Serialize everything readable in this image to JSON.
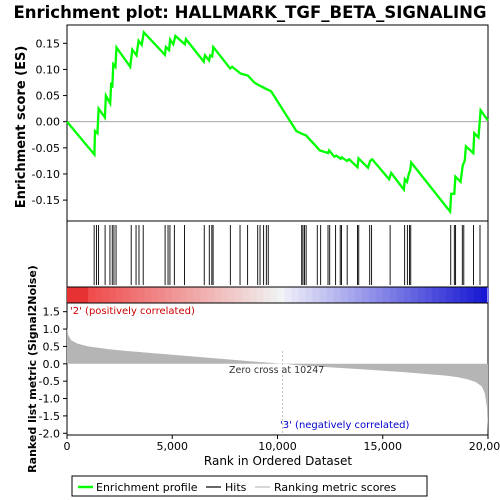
{
  "chart_data": {
    "type": "line",
    "title": "Enrichment plot: HALLMARK_TGF_BETA_SIGNALING",
    "es_panel": {
      "ylabel": "Enrichment score (ES)",
      "ylim": [
        -0.19,
        0.185
      ],
      "yticks": [
        -0.15,
        -0.1,
        -0.05,
        0.0,
        0.05,
        0.1,
        0.15
      ],
      "ytick_labels": [
        "-0.15",
        "-0.10",
        "-0.05",
        "0.00",
        "0.05",
        "0.10",
        "0.15"
      ],
      "color": "#00ff00",
      "series_points": [
        [
          0,
          0.0
        ],
        [
          1300,
          -0.063
        ],
        [
          1330,
          -0.018
        ],
        [
          1450,
          -0.022
        ],
        [
          1500,
          0.025
        ],
        [
          1800,
          0.008
        ],
        [
          1850,
          0.05
        ],
        [
          2050,
          0.035
        ],
        [
          2100,
          0.075
        ],
        [
          2150,
          0.065
        ],
        [
          2200,
          0.11
        ],
        [
          2300,
          0.105
        ],
        [
          2350,
          0.142
        ],
        [
          3000,
          0.105
        ],
        [
          3100,
          0.138
        ],
        [
          3300,
          0.127
        ],
        [
          3400,
          0.155
        ],
        [
          3550,
          0.147
        ],
        [
          3650,
          0.171
        ],
        [
          4650,
          0.128
        ],
        [
          4700,
          0.143
        ],
        [
          4850,
          0.137
        ],
        [
          4900,
          0.157
        ],
        [
          5050,
          0.148
        ],
        [
          5150,
          0.164
        ],
        [
          5600,
          0.148
        ],
        [
          5650,
          0.158
        ],
        [
          6500,
          0.115
        ],
        [
          6550,
          0.127
        ],
        [
          6750,
          0.117
        ],
        [
          6800,
          0.127
        ],
        [
          6900,
          0.125
        ],
        [
          6950,
          0.143
        ],
        [
          7750,
          0.102
        ],
        [
          7850,
          0.105
        ],
        [
          8250,
          0.092
        ],
        [
          8600,
          0.088
        ],
        [
          8900,
          0.075
        ],
        [
          9100,
          0.07
        ],
        [
          9300,
          0.066
        ],
        [
          9450,
          0.063
        ],
        [
          9700,
          0.058
        ],
        [
          10900,
          -0.018
        ],
        [
          11200,
          -0.024
        ],
        [
          11350,
          -0.026
        ],
        [
          11900,
          -0.05
        ],
        [
          12000,
          -0.055
        ],
        [
          12400,
          -0.06
        ],
        [
          12450,
          -0.055
        ],
        [
          12700,
          -0.067
        ],
        [
          12800,
          -0.065
        ],
        [
          13000,
          -0.071
        ],
        [
          13050,
          -0.068
        ],
        [
          13300,
          -0.075
        ],
        [
          13400,
          -0.072
        ],
        [
          13800,
          -0.087
        ],
        [
          13850,
          -0.07
        ],
        [
          14300,
          -0.088
        ],
        [
          14400,
          -0.075
        ],
        [
          14500,
          -0.072
        ],
        [
          15300,
          -0.11
        ],
        [
          15400,
          -0.098
        ],
        [
          16000,
          -0.13
        ],
        [
          16050,
          -0.11
        ],
        [
          16150,
          -0.115
        ],
        [
          16250,
          -0.098
        ],
        [
          16300,
          -0.094
        ],
        [
          16350,
          -0.078
        ],
        [
          18200,
          -0.172
        ],
        [
          18250,
          -0.138
        ],
        [
          18400,
          -0.138
        ],
        [
          18450,
          -0.105
        ],
        [
          18700,
          -0.115
        ],
        [
          18800,
          -0.084
        ],
        [
          18900,
          -0.074
        ],
        [
          18950,
          -0.047
        ],
        [
          19300,
          -0.06
        ],
        [
          19350,
          -0.022
        ],
        [
          19550,
          -0.03
        ],
        [
          19650,
          0.022
        ],
        [
          20000,
          0.002
        ]
      ]
    },
    "hits": [
      1290,
      1400,
      1500,
      1810,
      2040,
      2150,
      2230,
      2330,
      3050,
      3280,
      3420,
      3620,
      4660,
      4800,
      4890,
      5100,
      5580,
      6520,
      6760,
      6880,
      6940,
      7760,
      8220,
      8580,
      9060,
      9170,
      9340,
      9470,
      9560,
      11150,
      11210,
      11280,
      11360,
      11890,
      12050,
      12400,
      12480,
      12760,
      12980,
      13040,
      13310,
      13800,
      13860,
      14380,
      14470,
      15350,
      16040,
      16170,
      16270,
      16330,
      18230,
      18400,
      18460,
      18780,
      18850,
      19310,
      19620
    ],
    "metric_panel": {
      "ylabel": "Ranked list metric (Signal2Noise)",
      "xlabel": "Rank in Ordered Dataset",
      "ylim": [
        -2.05,
        1.75
      ],
      "yticks": [
        -2.0,
        -1.5,
        -1.0,
        -0.5,
        0.0,
        0.5,
        1.0,
        1.5
      ],
      "ytick_labels": [
        "-2.0",
        "-1.5",
        "-1.0",
        "-0.5",
        "0.0",
        "0.5",
        "1.0",
        "1.5"
      ],
      "xlim": [
        0,
        20000
      ],
      "xticks": [
        0,
        5000,
        10000,
        15000,
        20000
      ],
      "xtick_labels": [
        "0",
        "5,000",
        "10,000",
        "15,000",
        "20,000"
      ],
      "zero_cross_rank": 10247,
      "zero_cross_label": "Zero cross at 10247",
      "pos_label": "'2' (positively correlated)",
      "neg_label": "'3' (negatively correlated)",
      "curve_points": [
        [
          0,
          1.05
        ],
        [
          60,
          0.82
        ],
        [
          200,
          0.68
        ],
        [
          500,
          0.58
        ],
        [
          1000,
          0.5
        ],
        [
          2000,
          0.42
        ],
        [
          3000,
          0.36
        ],
        [
          4000,
          0.31
        ],
        [
          5000,
          0.26
        ],
        [
          6000,
          0.21
        ],
        [
          7000,
          0.16
        ],
        [
          8000,
          0.11
        ],
        [
          9000,
          0.06
        ],
        [
          10247,
          0.0
        ],
        [
          11000,
          -0.04
        ],
        [
          12000,
          -0.08
        ],
        [
          13000,
          -0.12
        ],
        [
          14000,
          -0.16
        ],
        [
          15000,
          -0.2
        ],
        [
          16000,
          -0.24
        ],
        [
          17000,
          -0.29
        ],
        [
          18000,
          -0.34
        ],
        [
          18500,
          -0.38
        ],
        [
          19000,
          -0.44
        ],
        [
          19400,
          -0.52
        ],
        [
          19700,
          -0.65
        ],
        [
          19850,
          -0.85
        ],
        [
          19950,
          -1.25
        ],
        [
          20000,
          -1.95
        ]
      ]
    },
    "legend": {
      "placement": "bottom",
      "items": [
        {
          "label": "Enrichment profile",
          "color": "#00ff00"
        },
        {
          "label": "Hits",
          "color": "#000000"
        },
        {
          "label": "Ranking metric scores",
          "color": "#bbbbbb"
        }
      ]
    }
  }
}
